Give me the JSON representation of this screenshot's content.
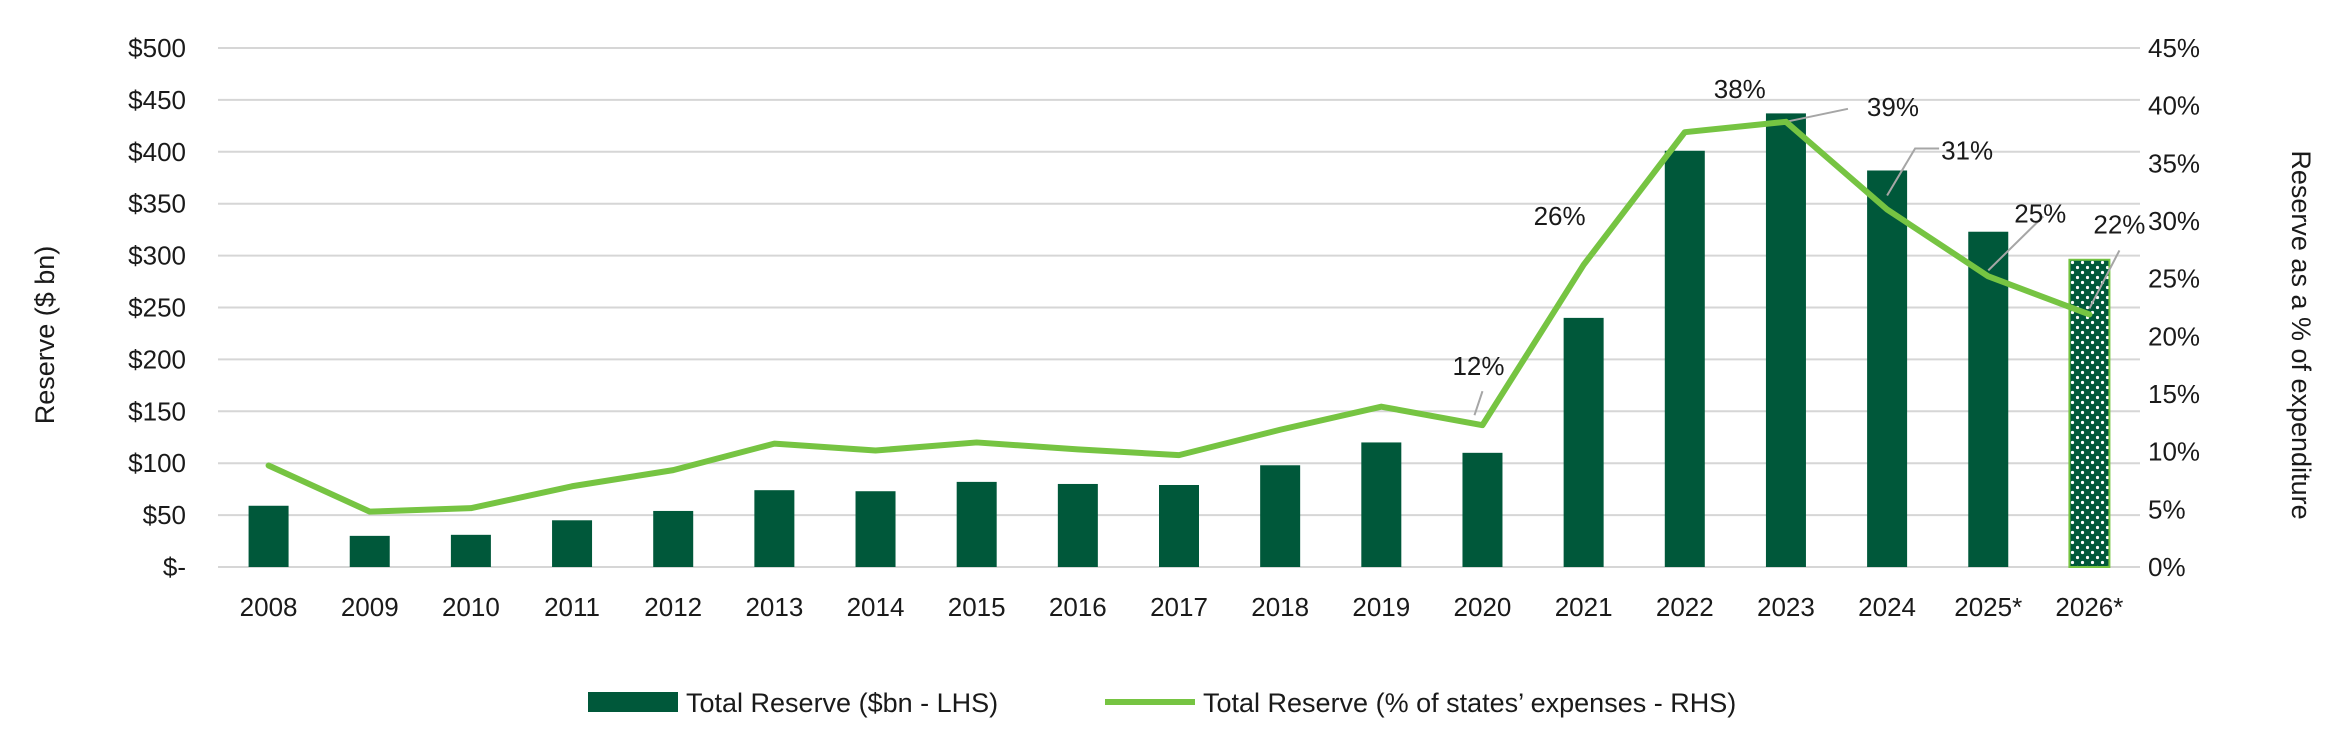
{
  "chart_data": {
    "type": "bar",
    "categories": [
      "2008",
      "2009",
      "2010",
      "2011",
      "2012",
      "2013",
      "2014",
      "2015",
      "2016",
      "2017",
      "2018",
      "2019",
      "2020",
      "2021",
      "2022",
      "2023",
      "2024",
      "2025*",
      "2026*"
    ],
    "series": [
      {
        "name": "Total Reserve ($bn - LHS)",
        "type": "bar",
        "axis": "left",
        "color": "#00583a",
        "pattern_categories": [
          "2026*"
        ],
        "values": [
          59,
          30,
          31,
          45,
          54,
          74,
          73,
          82,
          80,
          79,
          98,
          120,
          110,
          240,
          401,
          437,
          382,
          323,
          296
        ]
      },
      {
        "name": "Total Reserve (% of states' expenses - RHS)",
        "type": "line",
        "axis": "right",
        "color": "#76c442",
        "values": [
          8.8,
          4.8,
          5.1,
          7.0,
          8.4,
          10.7,
          10.1,
          10.8,
          10.2,
          9.7,
          11.9,
          13.9,
          12.3,
          26.2,
          37.7,
          38.6,
          31.0,
          25.2,
          21.9
        ]
      }
    ],
    "point_labels": [
      {
        "category": "2020",
        "text": "12%"
      },
      {
        "category": "2021",
        "text": "26%"
      },
      {
        "category": "2022",
        "text": "38%"
      },
      {
        "category": "2023",
        "text": "39%"
      },
      {
        "category": "2024",
        "text": "31%"
      },
      {
        "category": "2025*",
        "text": "25%"
      },
      {
        "category": "2026*",
        "text": "22%"
      }
    ],
    "ylabel": "Reserve ($ bn)",
    "y2label": "Reserve as a % of expenditure",
    "ylim": [
      0,
      500
    ],
    "y2lim": [
      0,
      45
    ],
    "yticks": [
      {
        "value": 500,
        "label": "$500"
      },
      {
        "value": 450,
        "label": "$450"
      },
      {
        "value": 400,
        "label": "$400"
      },
      {
        "value": 350,
        "label": "$350"
      },
      {
        "value": 300,
        "label": "$300"
      },
      {
        "value": 250,
        "label": "$250"
      },
      {
        "value": 200,
        "label": "$200"
      },
      {
        "value": 150,
        "label": "$150"
      },
      {
        "value": 100,
        "label": "$100"
      },
      {
        "value": 50,
        "label": "$50"
      },
      {
        "value": 0,
        "label": "$-"
      }
    ],
    "y2ticks": [
      {
        "value": 45,
        "label": "45%"
      },
      {
        "value": 40,
        "label": "40%"
      },
      {
        "value": 35,
        "label": "35%"
      },
      {
        "value": 30,
        "label": "30%"
      },
      {
        "value": 25,
        "label": "25%"
      },
      {
        "value": 20,
        "label": "20%"
      },
      {
        "value": 15,
        "label": "15%"
      },
      {
        "value": 10,
        "label": "10%"
      },
      {
        "value": 5,
        "label": "5%"
      },
      {
        "value": 0,
        "label": "0%"
      }
    ],
    "grid": true,
    "legend_position": "bottom-center",
    "legend": [
      {
        "label": "Total Reserve ($bn - LHS)",
        "marker": "bar",
        "color": "#00583a"
      },
      {
        "label": "Total Reserve (% of states’ expenses - RHS)",
        "marker": "line",
        "color": "#76c442"
      }
    ]
  }
}
